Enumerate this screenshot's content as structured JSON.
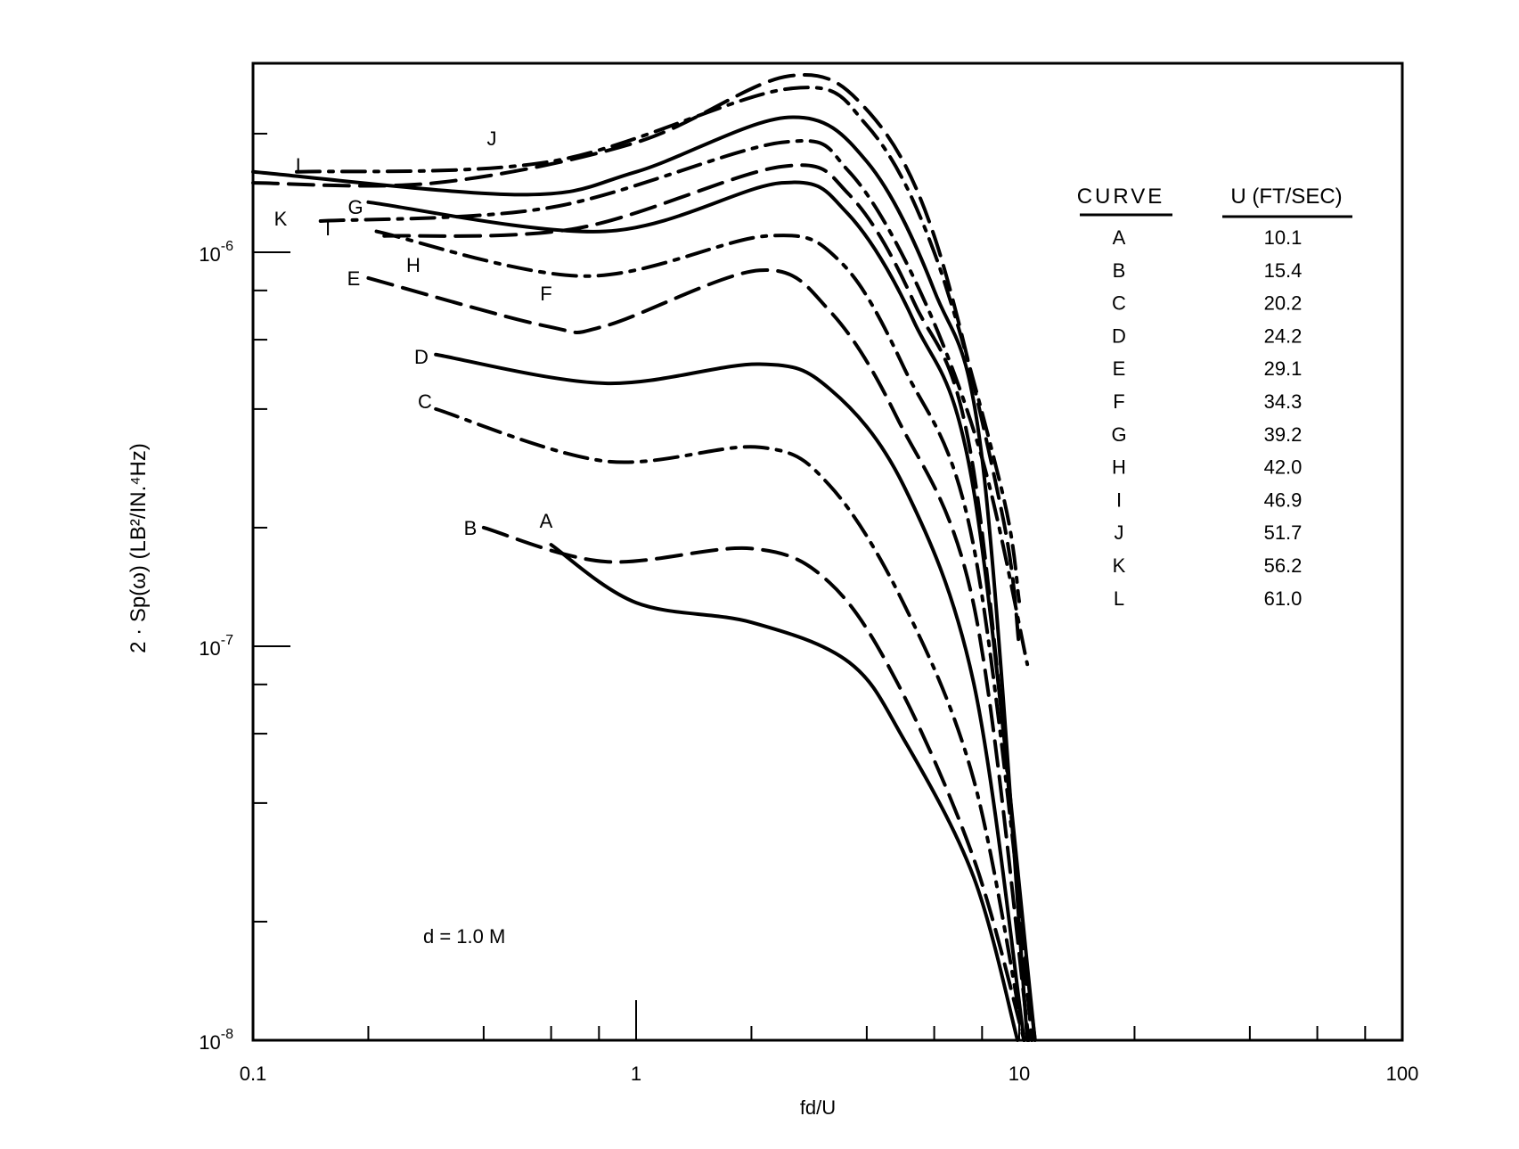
{
  "chart_data": {
    "type": "line",
    "title": "",
    "xlabel": "fd/U",
    "ylabel": "2 · Sp(ω) (LB²/IN.⁴Hz)",
    "xscale": "log",
    "yscale": "log",
    "xlim": [
      0.1,
      100
    ],
    "ylim": [
      1e-08,
      3e-06
    ],
    "grid": false,
    "xticks": [
      0.1,
      1,
      10,
      100
    ],
    "xticklabels": [
      "0.1",
      "1",
      "10",
      "100"
    ],
    "yticks": [
      1e-06,
      1e-07,
      1e-08
    ],
    "yticklabels": [
      {
        "base": "10",
        "exp": "-6"
      },
      {
        "base": "10",
        "exp": "-7"
      },
      {
        "base": "10",
        "exp": "-8"
      }
    ],
    "annotation": "d = 1.0 M",
    "legend": {
      "placement": "top-right",
      "header_curve": "CURVE",
      "header_u": "U (FT/SEC)",
      "rows": [
        {
          "curve": "A",
          "u": "10.1"
        },
        {
          "curve": "B",
          "u": "15.4"
        },
        {
          "curve": "C",
          "u": "20.2"
        },
        {
          "curve": "D",
          "u": "24.2"
        },
        {
          "curve": "E",
          "u": "29.1"
        },
        {
          "curve": "F",
          "u": "34.3"
        },
        {
          "curve": "G",
          "u": "39.2"
        },
        {
          "curve": "H",
          "u": "42.0"
        },
        {
          "curve": "I",
          "u": "46.9"
        },
        {
          "curve": "J",
          "u": "51.7"
        },
        {
          "curve": "K",
          "u": "56.2"
        },
        {
          "curve": "L",
          "u": "61.0"
        }
      ]
    },
    "series": [
      {
        "name": "A",
        "style": "solid",
        "x": [
          0.6,
          1.0,
          2.0,
          3.6,
          5.0,
          7.6,
          9.9
        ],
        "y": [
          1.81e-07,
          1.29e-07,
          1.15e-07,
          9.1e-08,
          5.8e-08,
          2.6e-08,
          1e-08
        ]
      },
      {
        "name": "B",
        "style": "dash",
        "x": [
          0.4,
          0.83,
          2.0,
          3.2,
          4.8,
          7.6,
          10.3
        ],
        "y": [
          2e-07,
          1.64e-07,
          1.77e-07,
          1.45e-07,
          8.1e-08,
          2.9e-08,
          1e-08
        ]
      },
      {
        "name": "C",
        "style": "dashdot",
        "x": [
          0.3,
          0.83,
          2.1,
          3.2,
          5.0,
          7.6,
          10.3
        ],
        "y": [
          4e-07,
          2.95e-07,
          3.2e-07,
          2.56e-07,
          1.28e-07,
          4.6e-08,
          1e-08
        ]
      },
      {
        "name": "D",
        "style": "solid",
        "x": [
          0.3,
          0.83,
          2.1,
          3.2,
          5.0,
          7.6,
          10.3
        ],
        "y": [
          5.5e-07,
          4.65e-07,
          5.2e-07,
          4.5e-07,
          2.55e-07,
          8.1e-08,
          1e-08
        ]
      },
      {
        "name": "E",
        "style": "dash",
        "x": [
          0.2,
          0.58,
          0.83,
          2.1,
          3.2,
          4.8,
          7.6,
          10.6
        ],
        "y": [
          8.6e-07,
          6.5e-07,
          6.5e-07,
          9e-07,
          7.1e-07,
          3.8e-07,
          1.28e-07,
          1e-08
        ]
      },
      {
        "name": "F",
        "style": "dashdot",
        "x": [
          0.21,
          0.73,
          2.2,
          3.4,
          5.0,
          7.6,
          11.0
        ],
        "y": [
          1.13e-06,
          8.7e-07,
          1.1e-06,
          9.5e-07,
          5.1e-07,
          1.8e-07,
          1e-08
        ]
      },
      {
        "name": "G",
        "style": "solid",
        "x": [
          0.2,
          0.83,
          2.4,
          3.55,
          5.3,
          7.6,
          11.0
        ],
        "y": [
          1.34e-06,
          1.13e-06,
          1.5e-06,
          1.26e-06,
          6.7e-07,
          2.5e-07,
          1e-08
        ]
      },
      {
        "name": "H",
        "style": "dash",
        "x": [
          0.22,
          0.7,
          2.4,
          3.6,
          5.3,
          7.6,
          10.8
        ],
        "y": [
          1.1e-06,
          1.15e-06,
          1.65e-06,
          1.4e-06,
          7.5e-07,
          2.8e-07,
          1e-08
        ]
      },
      {
        "name": "I",
        "style": "dashdot",
        "x": [
          0.15,
          0.6,
          2.4,
          3.6,
          5.5,
          8.0,
          10.5
        ],
        "y": [
          1.2e-06,
          1.3e-06,
          1.9e-06,
          1.6e-06,
          8e-07,
          3e-07,
          9e-08
        ]
      },
      {
        "name": "J",
        "style": "dashdot",
        "x": [
          0.13,
          0.6,
          2.5,
          4.0,
          6.0,
          9.0,
          10.0
        ],
        "y": [
          1.6e-06,
          1.7e-06,
          2.6e-06,
          2.1e-06,
          1e-06,
          2.5e-07,
          1.3e-07
        ]
      },
      {
        "name": "K",
        "style": "dash",
        "x": [
          0.1,
          0.3,
          1.0,
          2.5,
          4.0,
          6.0,
          9.0,
          10.0
        ],
        "y": [
          1.5e-06,
          1.5e-06,
          1.9e-06,
          2.8e-06,
          2.3e-06,
          1.1e-06,
          2.2e-07,
          1e-07
        ]
      },
      {
        "name": "L",
        "style": "solid",
        "x": [
          0.1,
          0.5,
          1.0,
          2.5,
          4.0,
          6.0,
          8.0,
          10.5
        ],
        "y": [
          1.6e-06,
          1.4e-06,
          1.6e-06,
          2.2e-06,
          1.7e-06,
          8e-07,
          3e-07,
          1e-08
        ]
      }
    ]
  }
}
